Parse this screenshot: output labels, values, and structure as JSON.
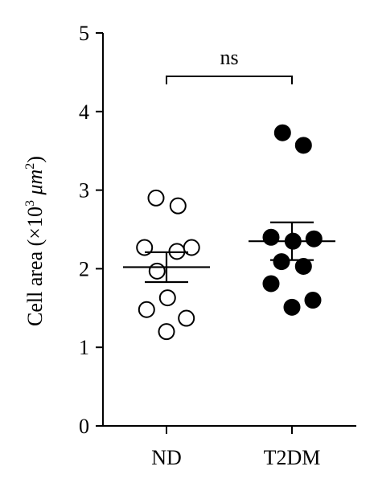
{
  "chart_data": {
    "type": "scatter",
    "categories": [
      "ND",
      "T2DM"
    ],
    "ylabel": {
      "text": "Cell area (×10",
      "sup1": "3",
      "mid": " μm",
      "sup2": "2",
      "end": ")"
    },
    "ylim": [
      0,
      5
    ],
    "yticks": [
      "0",
      "1",
      "2",
      "3",
      "4",
      "5"
    ],
    "significance": "ns",
    "series": [
      {
        "category": "ND",
        "marker": "open-circle",
        "values": [
          2.9,
          2.8,
          2.27,
          2.22,
          2.27,
          1.97,
          1.48,
          1.63,
          1.37,
          1.2
        ],
        "offsets": [
          -0.5,
          0.55,
          -1.05,
          0.5,
          1.2,
          -0.45,
          -0.95,
          0.05,
          0.95,
          0.0
        ],
        "mean": 2.02,
        "sem": 0.19
      },
      {
        "category": "T2DM",
        "marker": "filled-circle",
        "values": [
          3.73,
          3.57,
          2.4,
          2.35,
          2.38,
          2.09,
          2.03,
          1.81,
          1.6,
          1.51
        ],
        "offsets": [
          -0.45,
          0.55,
          -1.0,
          0.05,
          1.05,
          -0.5,
          0.55,
          -1.0,
          1.0,
          0.0
        ],
        "mean": 2.35,
        "sem": 0.24
      }
    ],
    "colors": {
      "stroke": "#000000",
      "open_fill": "#ffffff",
      "filled_fill": "#000000"
    }
  }
}
